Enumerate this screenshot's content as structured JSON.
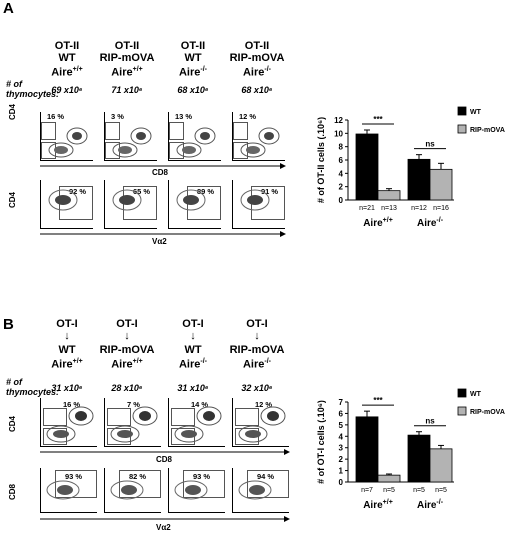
{
  "panel_a": {
    "letter": "A",
    "thymocytes_label": "# of thymocytes:",
    "columns": [
      {
        "line1": "OT-II",
        "line2": "WT",
        "line3": "Aire",
        "sup": "+/+",
        "count": "69 x10⁶"
      },
      {
        "line1": "OT-II",
        "line2": "RIP-mOVA",
        "line3": "Aire",
        "sup": "+/+",
        "count": "71 x10⁶"
      },
      {
        "line1": "OT-II",
        "line2": "WT",
        "line3": "Aire",
        "sup": "-/-",
        "count": "68 x10⁶"
      },
      {
        "line1": "OT-II",
        "line2": "RIP-mOVA",
        "line3": "Aire",
        "sup": "-/-",
        "count": "68 x10⁶"
      }
    ],
    "row1": {
      "y_axis": "CD4",
      "x_axis": "CD8",
      "percents": [
        "16 %",
        "3 %",
        "13 %",
        "12 %"
      ]
    },
    "row2": {
      "y_axis": "CD4",
      "x_axis": "Vα2",
      "percents": [
        "92 %",
        "65 %",
        "89 %",
        "91 %"
      ]
    }
  },
  "panel_b": {
    "letter": "B",
    "thymocytes_label": "# of thymocytes:",
    "columns": [
      {
        "donor": "OT-I",
        "line2": "WT",
        "line3": "Aire",
        "sup": "+/+",
        "count": "31 x10⁶"
      },
      {
        "donor": "OT-I",
        "line2": "RIP-mOVA",
        "line3": "Aire",
        "sup": "+/+",
        "count": "28 x10⁶"
      },
      {
        "donor": "OT-I",
        "line2": "WT",
        "line3": "Aire",
        "sup": "-/-",
        "count": "31 x10⁶"
      },
      {
        "donor": "OT-I",
        "line2": "RIP-mOVA",
        "line3": "Aire",
        "sup": "-/-",
        "count": "32 x10⁶"
      }
    ],
    "row1": {
      "y_axis": "CD4",
      "x_axis": "CD8",
      "percents": [
        "16 %",
        "7 %",
        "14 %",
        "12 %"
      ]
    },
    "row2": {
      "y_axis": "CD8",
      "x_axis": "Vα2",
      "percents": [
        "93 %",
        "82 %",
        "93 %",
        "94 %"
      ]
    }
  },
  "colors": {
    "wt": "#000000",
    "ripmova": "#b3b3b3"
  },
  "chart_data": [
    {
      "type": "bar",
      "ylabel": "# of OT-II cells (.10⁶)",
      "ylim": [
        0,
        12
      ],
      "yticks": [
        0,
        2,
        4,
        6,
        8,
        10,
        12
      ],
      "groups": [
        "Aire+/+",
        "Aire-/-"
      ],
      "group_labels": [
        {
          "base": "Aire",
          "sup": "+/+"
        },
        {
          "base": "Aire",
          "sup": "-/-"
        }
      ],
      "series": [
        {
          "name": "WT",
          "values": [
            9.9,
            6.1
          ],
          "errors": [
            0.6,
            0.7
          ],
          "n": [
            "n=21",
            "n=12"
          ]
        },
        {
          "name": "RIP-mOVA",
          "values": [
            1.4,
            4.6
          ],
          "errors": [
            0.3,
            0.9
          ],
          "n": [
            "n=13",
            "n=16"
          ]
        }
      ],
      "significance": [
        "***",
        "ns"
      ],
      "legend": "top-right"
    },
    {
      "type": "bar",
      "ylabel": "# of OT-I cells (.10⁶)",
      "ylim": [
        0,
        7
      ],
      "yticks": [
        0,
        1,
        2,
        3,
        4,
        5,
        6,
        7
      ],
      "groups": [
        "Aire+/+",
        "Aire-/-"
      ],
      "group_labels": [
        {
          "base": "Aire",
          "sup": "+/+"
        },
        {
          "base": "Aire",
          "sup": "-/-"
        }
      ],
      "series": [
        {
          "name": "WT",
          "values": [
            5.7,
            4.1
          ],
          "errors": [
            0.5,
            0.3
          ],
          "n": [
            "n=7",
            "n=5"
          ]
        },
        {
          "name": "RIP-mOVA",
          "values": [
            0.6,
            2.9
          ],
          "errors": [
            0.1,
            0.3
          ],
          "n": [
            "n=5",
            "n=5"
          ]
        }
      ],
      "significance": [
        "***",
        "ns"
      ],
      "legend": "top-right"
    }
  ]
}
